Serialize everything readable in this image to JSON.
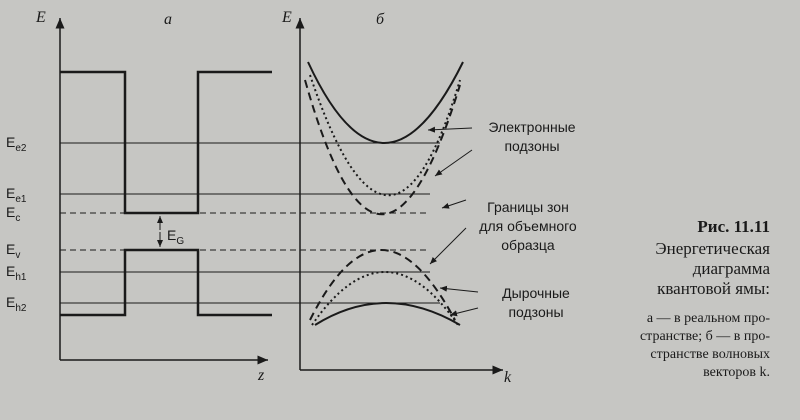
{
  "panels": {
    "left": {
      "label": "а",
      "axis_y": "E",
      "axis_x": "z"
    },
    "right": {
      "label": "б",
      "axis_y": "E",
      "axis_x": "k"
    }
  },
  "levels": [
    {
      "main": "E",
      "sub": "e2"
    },
    {
      "main": "E",
      "sub": "e1"
    },
    {
      "main": "E",
      "sub": "c"
    },
    {
      "main": "E",
      "sub": "v"
    },
    {
      "main": "E",
      "sub": "h1"
    },
    {
      "main": "E",
      "sub": "h2"
    }
  ],
  "gap": {
    "main": "E",
    "sub": "G"
  },
  "annotations": [
    {
      "lines": [
        "Электронные",
        "подзоны"
      ]
    },
    {
      "lines": [
        "Границы зон",
        "для объемного",
        "образца"
      ]
    },
    {
      "lines": [
        "Дырочные",
        "подзоны"
      ]
    }
  ],
  "caption": {
    "number": "Рис. 11.11",
    "title": [
      "Энергетическая",
      "диаграмма",
      "квантовой ямы:"
    ],
    "text": [
      "а — в реальном про-",
      "странстве; б — в про-",
      "странстве волновых",
      "векторов k."
    ]
  }
}
